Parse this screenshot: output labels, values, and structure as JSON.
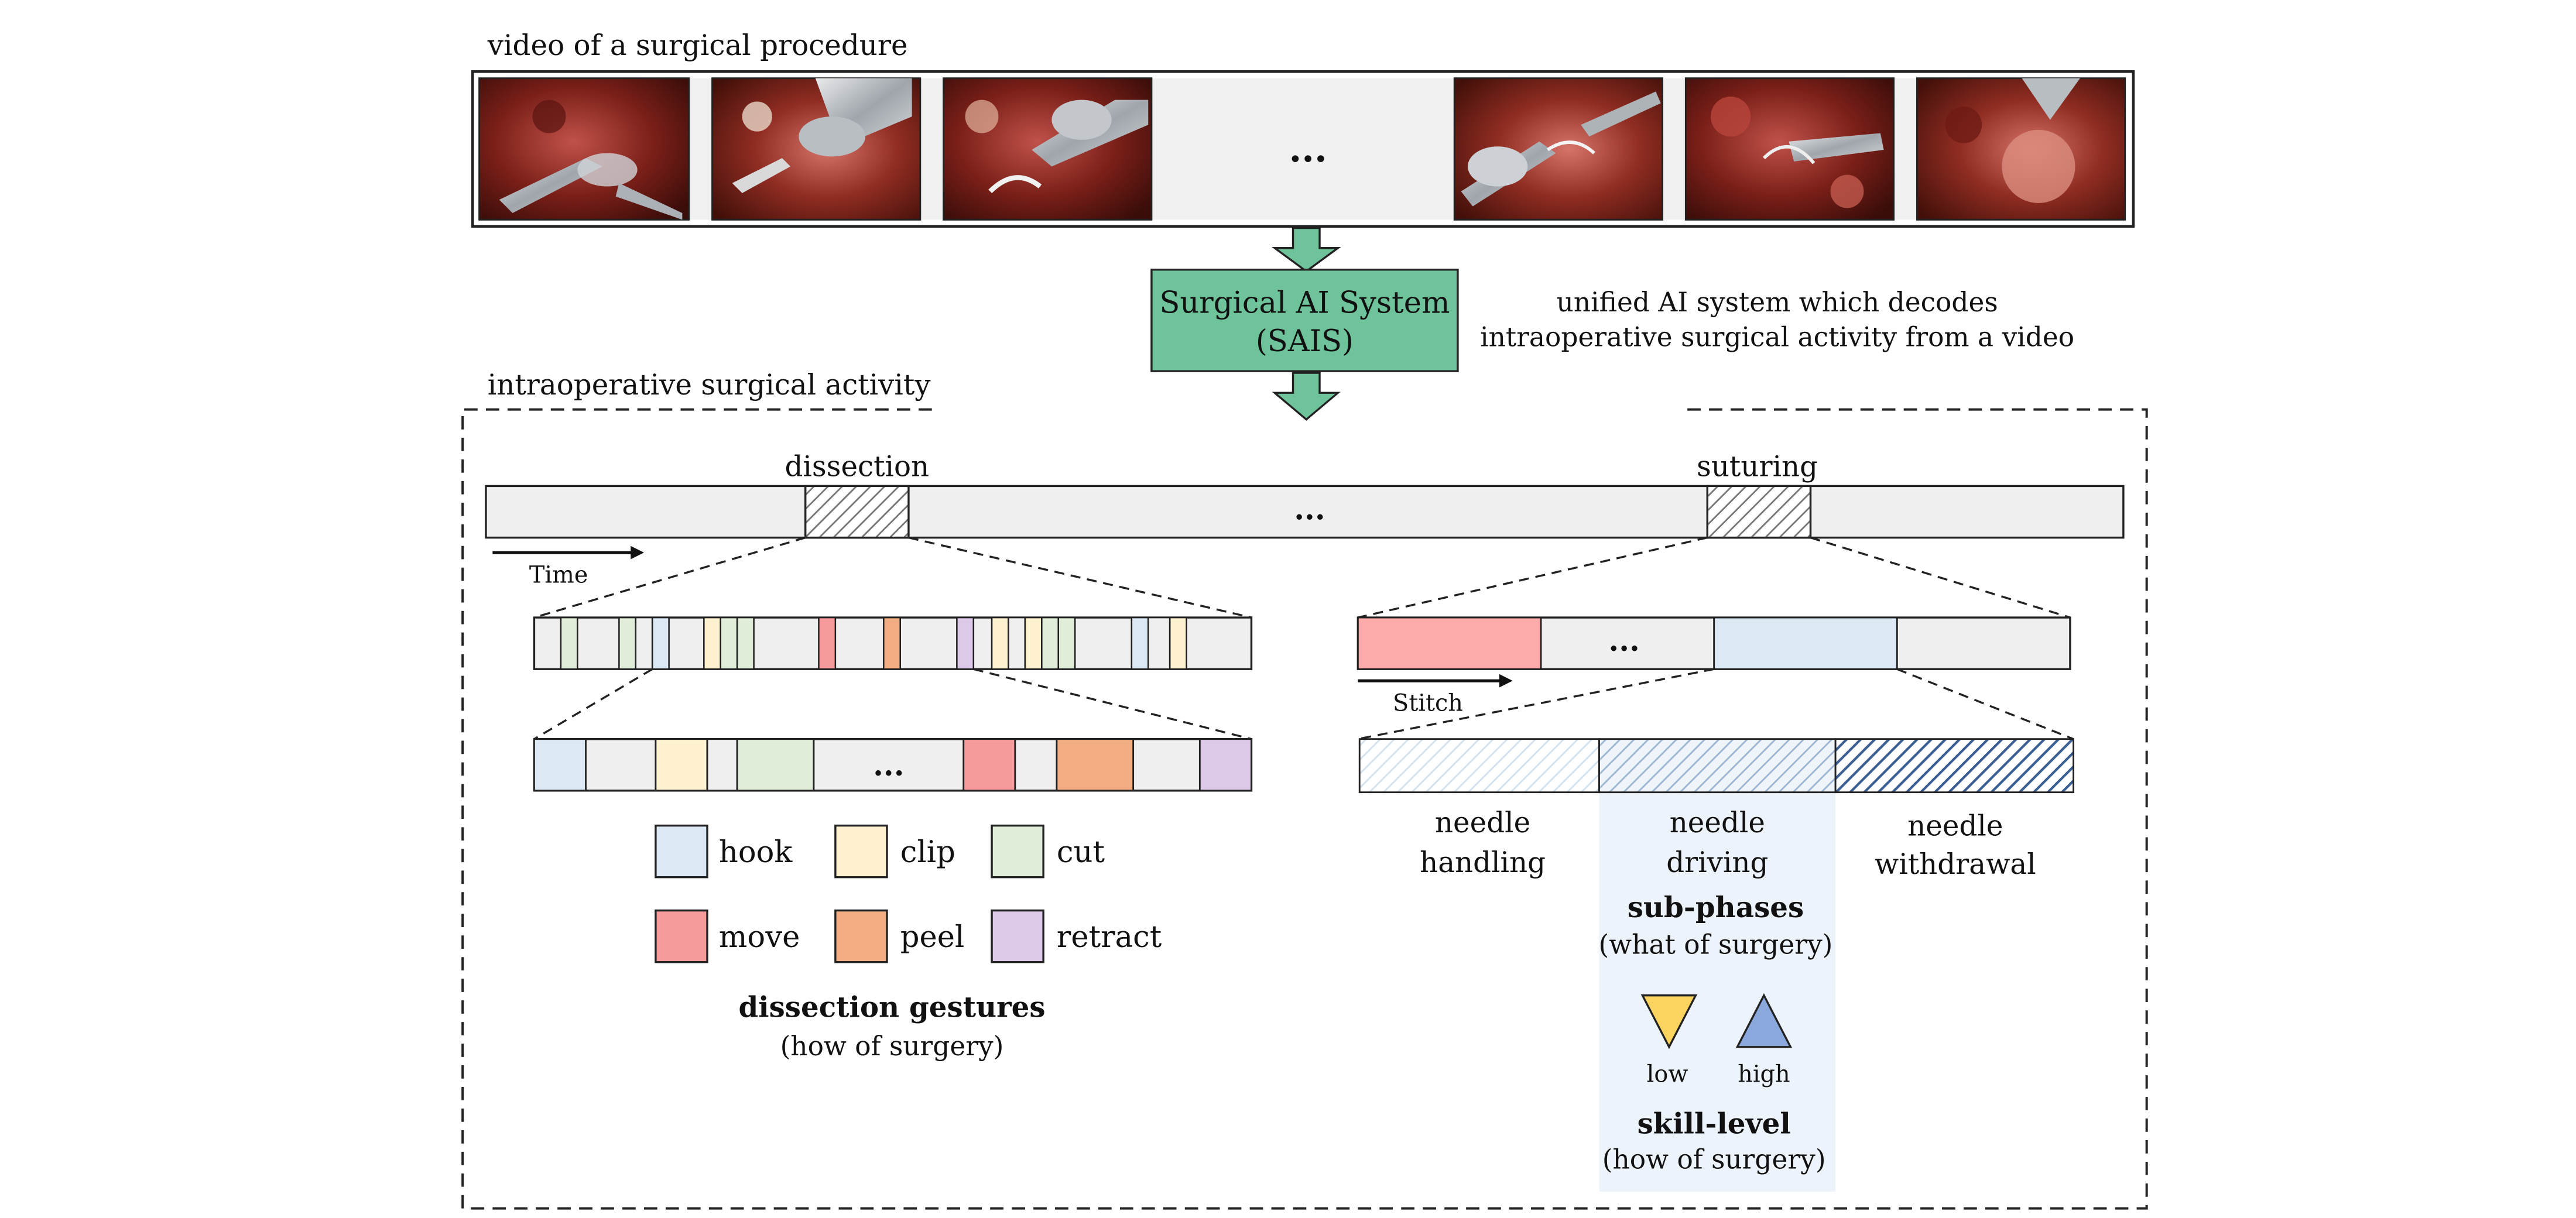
{
  "video": {
    "title": "video of a surgical procedure",
    "frames": [
      "surgical video frame 1",
      "surgical video frame 2",
      "surgical video frame 3",
      "surgical video frame 4",
      "surgical video frame 5",
      "surgical video frame 6"
    ],
    "ellipsis": "..."
  },
  "sais": {
    "line1": "Surgical AI System",
    "line2": "(SAIS)",
    "desc_line1": "unified AI system which decodes",
    "desc_line2": "intraoperative surgical activity from a video",
    "box_color": "#6fc39a"
  },
  "activity": {
    "title": "intraoperative surgical activity",
    "phase_dissection": "dissection",
    "phase_suturing": "suturing",
    "time_label": "Time",
    "stitch_label": "Stitch",
    "ellipsis": "..."
  },
  "gestures": {
    "items": [
      {
        "label": "hook",
        "color": "#dce9f5"
      },
      {
        "label": "clip",
        "color": "#fdf1cf"
      },
      {
        "label": "cut",
        "color": "#dfedd9"
      },
      {
        "label": "move",
        "color": "#f79a9c"
      },
      {
        "label": "peel",
        "color": "#f2ad82"
      },
      {
        "label": "retract",
        "color": "#dcc9ea"
      }
    ],
    "title": "dissection gestures",
    "subtitle": "(how of surgery)"
  },
  "subphases": {
    "needle_handling_1": "needle",
    "needle_handling_2": "handling",
    "needle_driving_1": "needle",
    "needle_driving_2": "driving",
    "needle_withdrawal_1": "needle",
    "needle_withdrawal_2": "withdrawal",
    "title": "sub-phases",
    "subtitle": "(what of surgery)"
  },
  "skill": {
    "low": "low",
    "high": "high",
    "title": "skill-level",
    "subtitle": "(how of surgery)",
    "low_color": "#fbd35f",
    "high_color": "#8aa8dc"
  }
}
